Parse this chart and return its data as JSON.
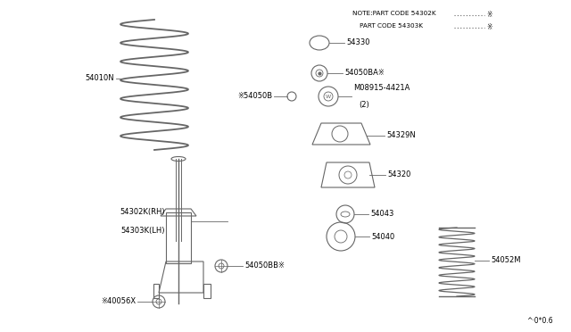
{
  "bg_color": "#ffffff",
  "line_color": "#666666",
  "text_color": "#000000",
  "footer": "^·0*0.6",
  "note_line1": "NOTE:PART CODE 54302K",
  "note_line2": "PART CODE 54303K",
  "note_symbol": "※"
}
